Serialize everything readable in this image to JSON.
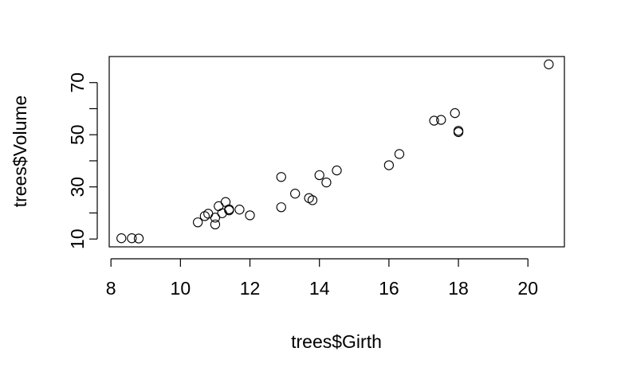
{
  "chart_data": {
    "type": "scatter",
    "title": "",
    "xlabel": "trees$Girth",
    "ylabel": "trees$Volume",
    "xlim": [
      7.95,
      21.05
    ],
    "ylim": [
      7.0,
      80.0
    ],
    "x_ticks": [
      8,
      10,
      12,
      14,
      16,
      18,
      20
    ],
    "y_ticks": [
      10,
      30,
      50,
      70
    ],
    "y_ticks_unlabeled": [
      20,
      40,
      60
    ],
    "grid": false,
    "legend": "none",
    "marker": "open-circle",
    "colors": {
      "points": "#000000",
      "axes": "#000000",
      "background": "#ffffff"
    },
    "points": [
      {
        "x": 8.3,
        "y": 10.3
      },
      {
        "x": 8.6,
        "y": 10.3
      },
      {
        "x": 8.8,
        "y": 10.2
      },
      {
        "x": 10.5,
        "y": 16.4
      },
      {
        "x": 10.7,
        "y": 18.8
      },
      {
        "x": 10.8,
        "y": 19.7
      },
      {
        "x": 11.0,
        "y": 15.6
      },
      {
        "x": 11.0,
        "y": 18.2
      },
      {
        "x": 11.1,
        "y": 22.6
      },
      {
        "x": 11.2,
        "y": 19.9
      },
      {
        "x": 11.3,
        "y": 24.2
      },
      {
        "x": 11.4,
        "y": 21.0
      },
      {
        "x": 11.4,
        "y": 21.4
      },
      {
        "x": 11.7,
        "y": 21.3
      },
      {
        "x": 12.0,
        "y": 19.1
      },
      {
        "x": 12.9,
        "y": 22.2
      },
      {
        "x": 12.9,
        "y": 33.8
      },
      {
        "x": 13.3,
        "y": 27.4
      },
      {
        "x": 13.7,
        "y": 25.7
      },
      {
        "x": 13.8,
        "y": 24.9
      },
      {
        "x": 14.0,
        "y": 34.5
      },
      {
        "x": 14.2,
        "y": 31.7
      },
      {
        "x": 14.5,
        "y": 36.3
      },
      {
        "x": 16.0,
        "y": 38.3
      },
      {
        "x": 16.3,
        "y": 42.6
      },
      {
        "x": 17.3,
        "y": 55.4
      },
      {
        "x": 17.5,
        "y": 55.7
      },
      {
        "x": 17.9,
        "y": 58.3
      },
      {
        "x": 18.0,
        "y": 51.5
      },
      {
        "x": 18.0,
        "y": 51.0
      },
      {
        "x": 20.6,
        "y": 77.0
      }
    ]
  }
}
